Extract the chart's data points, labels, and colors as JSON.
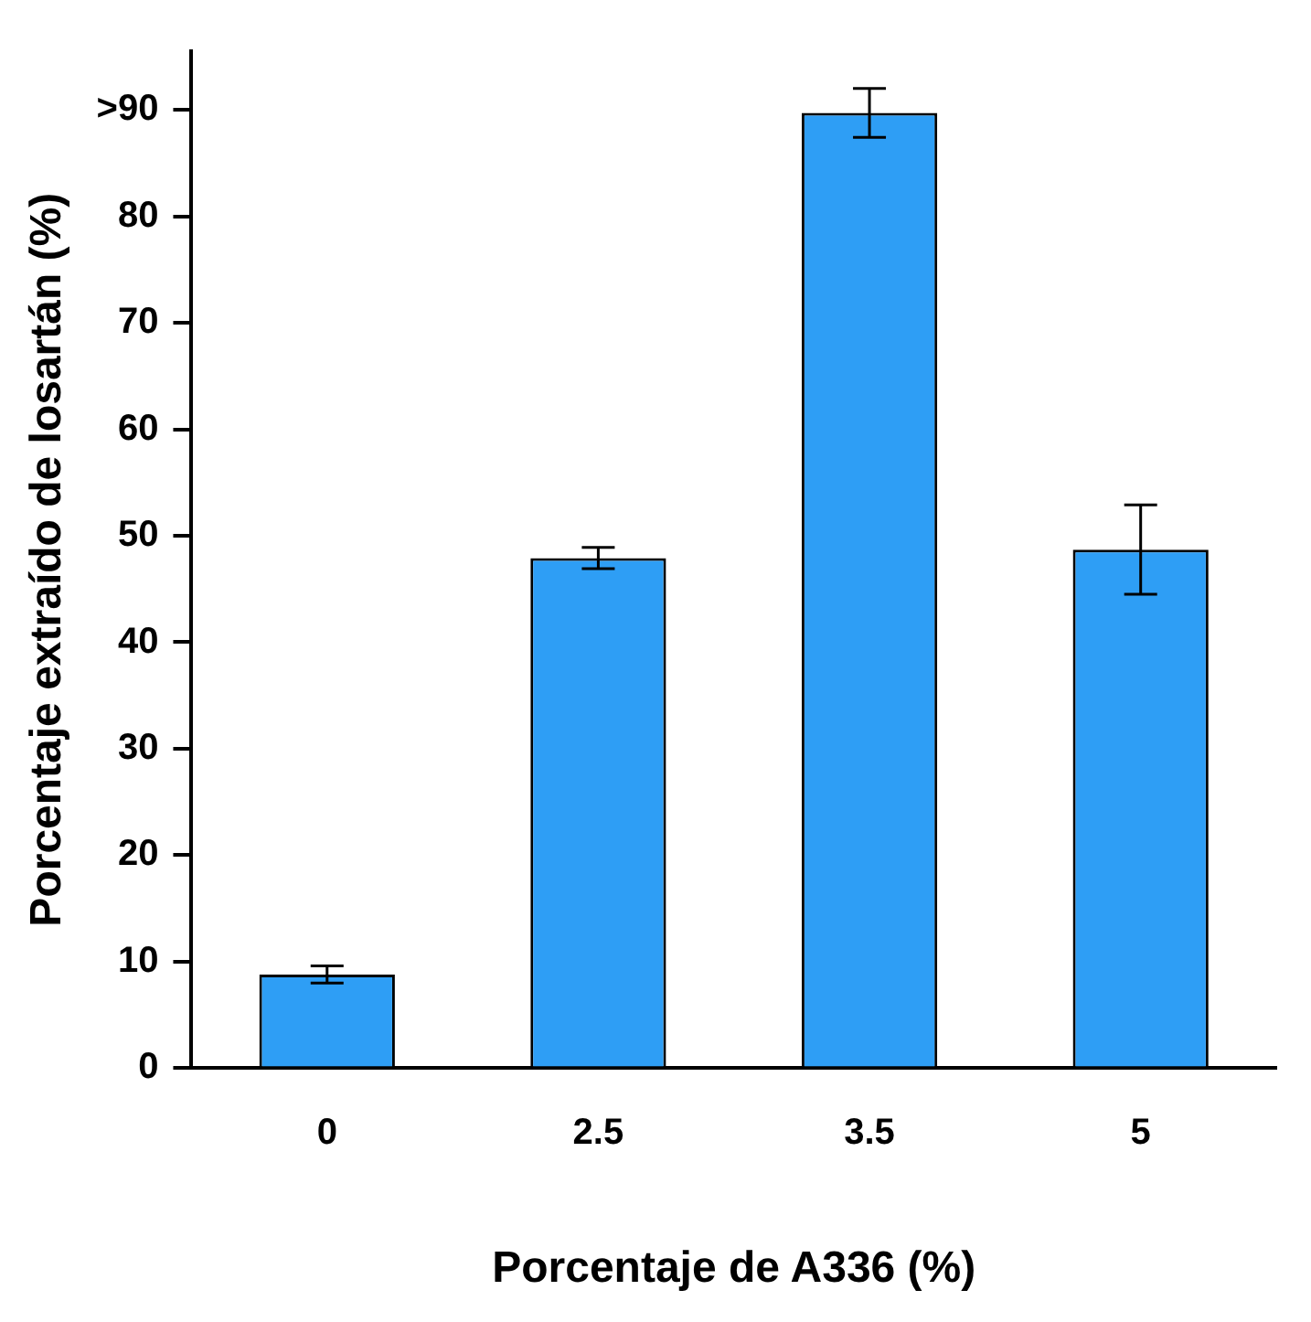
{
  "chart_data": {
    "type": "bar",
    "xlabel": "Porcentaje de A336 (%)",
    "ylabel": "Porcentaje extraído de losartán (%)",
    "categories": [
      "0",
      "2.5",
      "3.5",
      "5"
    ],
    "values": [
      8.8,
      47.9,
      89.7,
      48.7
    ],
    "errors": [
      0.8,
      1,
      2.3,
      4.2
    ],
    "color": "#2e9ef5",
    "ylim": [
      0,
      95.5
    ],
    "yticks": [
      0,
      10,
      20,
      30,
      40,
      50,
      60,
      70,
      80,
      {
        "value": 90,
        "label": ">90"
      }
    ],
    "grid": false,
    "legend": false
  }
}
